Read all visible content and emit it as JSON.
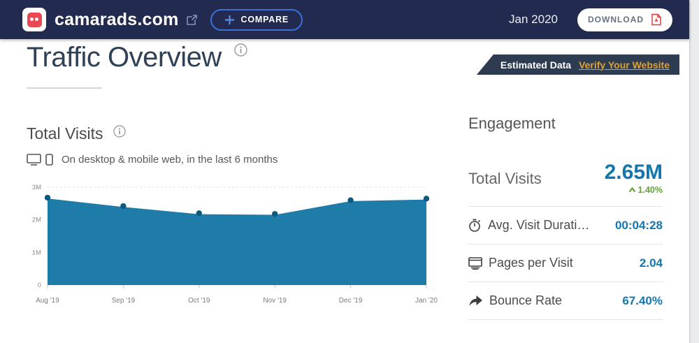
{
  "header": {
    "site_name": "camarads.com",
    "compare_label": "COMPARE",
    "date_label": "Jan 2020",
    "download_label": "DOWNLOAD"
  },
  "page": {
    "title": "Traffic Overview",
    "banner_text": "Estimated Data",
    "banner_link": "Verify Your Website"
  },
  "total_visits_section": {
    "title": "Total Visits",
    "subtitle": "On desktop & mobile web, in the last 6 months"
  },
  "chart_data": {
    "type": "area",
    "title": "Total Visits",
    "x": [
      "Aug '19",
      "Sep '19",
      "Oct '19",
      "Nov '19",
      "Dec '19",
      "Jan '20"
    ],
    "values": [
      2680000,
      2420000,
      2200000,
      2180000,
      2600000,
      2650000
    ],
    "yticks": [
      "0",
      "1M",
      "2M",
      "3M"
    ],
    "ytick_values": [
      0,
      1000000,
      2000000,
      3000000
    ],
    "ylim": [
      0,
      3000000
    ],
    "grid": "horizontal-dashed",
    "legend": "none",
    "colors": {
      "fill": "#1f7ca8",
      "line": "#ffffff",
      "dot": "#0d5a80"
    }
  },
  "engagement": {
    "title": "Engagement",
    "total_visits": {
      "label": "Total Visits",
      "value": "2.65M",
      "change": "1.40%",
      "direction": "up"
    },
    "rows": [
      {
        "label": "Avg. Visit Durati…",
        "value": "00:04:28",
        "icon": "stopwatch-icon"
      },
      {
        "label": "Pages per Visit",
        "value": "2.04",
        "icon": "pages-icon"
      },
      {
        "label": "Bounce Rate",
        "value": "67.40%",
        "icon": "bounce-arrow-icon"
      }
    ]
  },
  "colors": {
    "header_bg": "#222b4f",
    "accent_blue": "#3c6ed6",
    "value_blue": "#1377ad",
    "positive_green": "#5ea32f",
    "banner_bg": "#2d3c50",
    "banner_link_orange": "#dfa02f",
    "pdf_red": "#e23c3f"
  }
}
